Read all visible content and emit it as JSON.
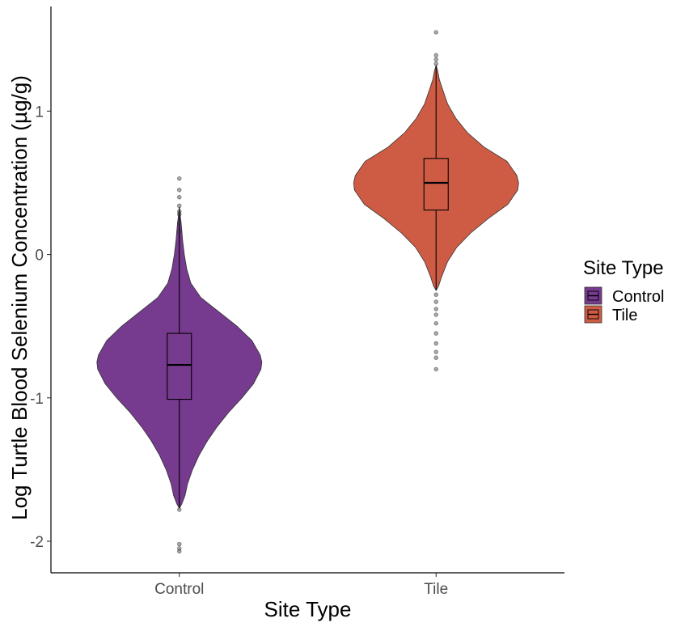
{
  "chart_data": {
    "type": "violin",
    "xlabel": "Site Type",
    "ylabel": "Log Turtle Blood Selenium Concentration (µg/g)",
    "ylim": [
      -2.22,
      1.73
    ],
    "yticks": [
      -2,
      -1,
      0,
      1
    ],
    "ytick_labels": [
      "-2",
      "-1",
      "0",
      "1"
    ],
    "categories": [
      "Control",
      "Tile"
    ],
    "grid": false,
    "legend": {
      "title": "Site Type",
      "position": "right"
    },
    "series": [
      {
        "name": "Control",
        "color": "#763a8f",
        "violin": {
          "min": -1.77,
          "max": 0.33,
          "profile": [
            [
              -1.77,
              0.0
            ],
            [
              -1.74,
              0.03
            ],
            [
              -1.68,
              0.07
            ],
            [
              -1.6,
              0.1
            ],
            [
              -1.5,
              0.16
            ],
            [
              -1.4,
              0.24
            ],
            [
              -1.3,
              0.34
            ],
            [
              -1.2,
              0.46
            ],
            [
              -1.1,
              0.6
            ],
            [
              -1.0,
              0.76
            ],
            [
              -0.9,
              0.9
            ],
            [
              -0.8,
              0.99
            ],
            [
              -0.75,
              1.0
            ],
            [
              -0.7,
              0.98
            ],
            [
              -0.6,
              0.88
            ],
            [
              -0.5,
              0.7
            ],
            [
              -0.4,
              0.48
            ],
            [
              -0.3,
              0.26
            ],
            [
              -0.2,
              0.14
            ],
            [
              -0.1,
              0.09
            ],
            [
              0.0,
              0.06
            ],
            [
              0.1,
              0.04
            ],
            [
              0.2,
              0.025
            ],
            [
              0.33,
              0.0
            ]
          ]
        },
        "box": {
          "q1": -1.01,
          "median": -0.77,
          "q3": -0.55,
          "whisker_low": -1.77,
          "whisker_high": 0.33
        },
        "outliers": [
          -2.07,
          -2.05,
          -2.02,
          -1.78,
          0.16,
          0.22,
          0.28,
          0.3,
          0.34,
          0.4,
          0.45,
          0.53
        ]
      },
      {
        "name": "Tile",
        "color": "#ce5c45",
        "violin": {
          "min": -0.25,
          "max": 1.32,
          "profile": [
            [
              -0.25,
              0.0
            ],
            [
              -0.22,
              0.03
            ],
            [
              -0.15,
              0.07
            ],
            [
              -0.05,
              0.14
            ],
            [
              0.05,
              0.25
            ],
            [
              0.15,
              0.42
            ],
            [
              0.25,
              0.63
            ],
            [
              0.35,
              0.87
            ],
            [
              0.45,
              0.99
            ],
            [
              0.5,
              1.0
            ],
            [
              0.55,
              0.98
            ],
            [
              0.65,
              0.86
            ],
            [
              0.75,
              0.58
            ],
            [
              0.85,
              0.38
            ],
            [
              0.95,
              0.24
            ],
            [
              1.05,
              0.14
            ],
            [
              1.15,
              0.08
            ],
            [
              1.22,
              0.04
            ],
            [
              1.28,
              0.02
            ],
            [
              1.32,
              0.0
            ]
          ]
        },
        "box": {
          "q1": 0.31,
          "median": 0.5,
          "q3": 0.67,
          "whisker_low": -0.25,
          "whisker_high": 1.32
        },
        "outliers": [
          -0.8,
          -0.72,
          -0.68,
          -0.62,
          -0.55,
          -0.48,
          -0.42,
          -0.38,
          -0.33,
          -0.28,
          1.33,
          1.36,
          1.39,
          1.55
        ]
      }
    ]
  }
}
